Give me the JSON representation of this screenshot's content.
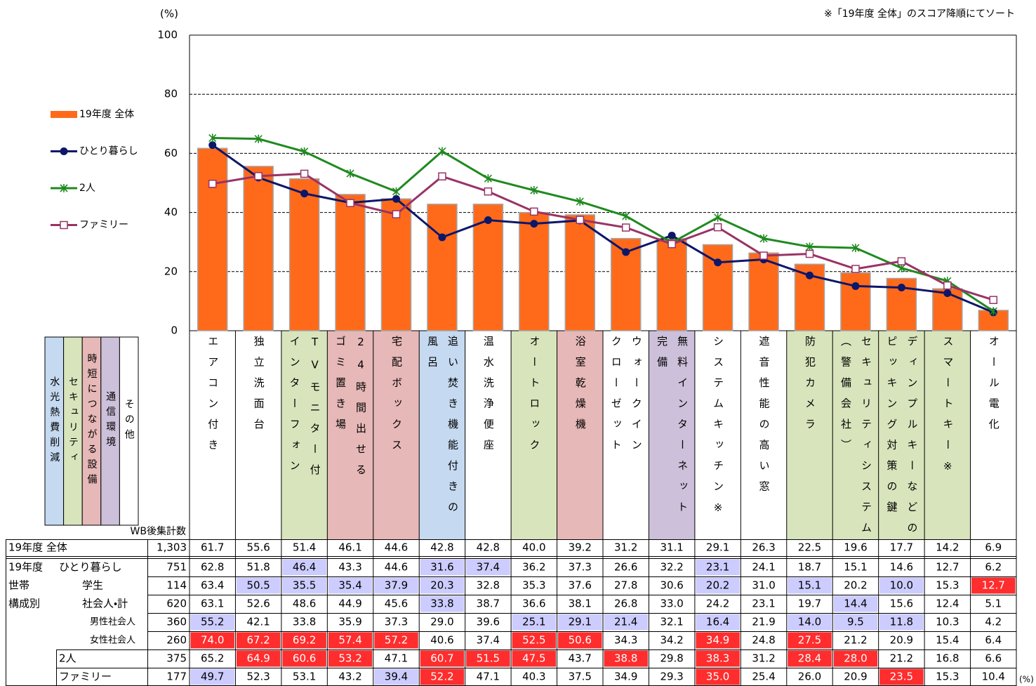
{
  "chart_data": {
    "type": "bar",
    "y_unit": "(%)",
    "note": "※「19年度 全体」のスコア降順にてソート",
    "categories": [
      "エアコン付き",
      "独立洗面台",
      "TVモニター付\nインターフォン",
      "24時間出せる\nゴミ置き場",
      "宅配ボックス",
      "追い焚き機能付きの\n風呂",
      "温水洗浄便座",
      "オートロック",
      "浴室乾燥機",
      "ウォークイン\nクローゼット",
      "無料インターネット\n完備",
      "システムキッチン※",
      "遮音性能の高い窓",
      "防犯カメラ",
      "セキュリティシステム\n（警備会社）",
      "ディンプルキーなどの\nピッキング対策の鍵",
      "スマートキー※",
      "オール電化"
    ],
    "category_colors": [
      "#ffffff",
      "#ffffff",
      "#d8e4bc",
      "#e6b8b7",
      "#e6b8b7",
      "#c5d9f1",
      "#ffffff",
      "#d8e4bc",
      "#e6b8b7",
      "#ffffff",
      "#ccc0da",
      "#ffffff",
      "#ffffff",
      "#d8e4bc",
      "#d8e4bc",
      "#d8e4bc",
      "#d8e4bc",
      "#ffffff"
    ],
    "category_groups": [
      {
        "name": "水光熱費削減",
        "color": "#c5d9f1"
      },
      {
        "name": "セキュリティ",
        "color": "#d8e4bc"
      },
      {
        "name": "時短につながる設備",
        "color": "#e6b8b7"
      },
      {
        "name": "通信環境",
        "color": "#ccc0da"
      },
      {
        "name": "その他",
        "color": "#ffffff"
      }
    ],
    "ylim": [
      0,
      100
    ],
    "yticks": [
      0,
      20,
      40,
      60,
      80,
      100
    ],
    "grid": true,
    "series": [
      {
        "name": "19年度 全体",
        "type": "bar",
        "color": "#ff6a1a",
        "n": {
          "value": 1303,
          "label": "1,303"
        },
        "values": [
          61.7,
          55.6,
          51.4,
          46.1,
          44.6,
          42.8,
          42.8,
          40.0,
          39.2,
          31.2,
          31.1,
          29.1,
          26.3,
          22.5,
          19.6,
          17.7,
          14.2,
          6.9
        ],
        "value_labels": [
          "61.7",
          "55.6",
          "51.4",
          "46.1",
          "44.6",
          "42.8",
          "42.8",
          "40.0",
          "39.2",
          "31.2",
          "31.1",
          "29.1",
          "26.3",
          "22.5",
          "19.6",
          "17.7",
          "14.2",
          "6.9"
        ]
      },
      {
        "name": "ひとり暮らし",
        "type": "line",
        "marker": "circle",
        "color": "#0d1769",
        "n": 751,
        "values": [
          62.8,
          51.8,
          46.4,
          43.3,
          44.6,
          31.6,
          37.4,
          36.2,
          37.3,
          26.6,
          32.2,
          23.1,
          24.1,
          18.7,
          15.1,
          14.6,
          12.7,
          6.2
        ],
        "value_labels": [
          "62.8",
          "51.8",
          "46.4",
          "43.3",
          "44.6",
          "31.6",
          "37.4",
          "36.2",
          "37.3",
          "26.6",
          "32.2",
          "23.1",
          "24.1",
          "18.7",
          "15.1",
          "14.6",
          "12.7",
          "6.2"
        ],
        "cell_colors": [
          null,
          null,
          "#ccccff",
          null,
          null,
          "#ccccff",
          "#ccccff",
          null,
          null,
          null,
          null,
          "#ccccff",
          null,
          null,
          null,
          null,
          null,
          null
        ]
      },
      {
        "name": "2人",
        "type": "line",
        "marker": "star",
        "color": "#1f8a1f",
        "n": 375,
        "values": [
          65.2,
          64.9,
          60.6,
          53.2,
          47.1,
          60.7,
          51.5,
          47.5,
          43.7,
          38.8,
          29.8,
          38.3,
          31.2,
          28.4,
          28.0,
          21.2,
          16.8,
          6.6
        ],
        "value_labels": [
          "65.2",
          "64.9",
          "60.6",
          "53.2",
          "47.1",
          "60.7",
          "51.5",
          "47.5",
          "43.7",
          "38.8",
          "29.8",
          "38.3",
          "31.2",
          "28.4",
          "28.0",
          "21.2",
          "16.8",
          "6.6"
        ],
        "cell_colors": [
          null,
          "#ff2d2d",
          "#ff2d2d",
          "#ff2d2d",
          null,
          "#ff2d2d",
          "#ff2d2d",
          "#ff2d2d",
          null,
          "#ff2d2d",
          null,
          "#ff2d2d",
          null,
          "#ff2d2d",
          "#ff2d2d",
          null,
          null,
          null
        ]
      },
      {
        "name": "ファミリー",
        "type": "line",
        "marker": "square",
        "color": "#993366",
        "n": 177,
        "values": [
          49.7,
          52.3,
          53.1,
          43.2,
          39.4,
          52.2,
          47.1,
          40.3,
          37.5,
          34.9,
          29.3,
          35.0,
          25.4,
          26.0,
          20.9,
          23.5,
          15.3,
          10.4
        ],
        "value_labels": [
          "49.7",
          "52.3",
          "53.1",
          "43.2",
          "39.4",
          "52.2",
          "47.1",
          "40.3",
          "37.5",
          "34.9",
          "29.3",
          "35.0",
          "25.4",
          "26.0",
          "20.9",
          "23.5",
          "15.3",
          "10.4"
        ],
        "cell_colors": [
          "#ccccff",
          null,
          null,
          null,
          "#ccccff",
          "#ff2d2d",
          null,
          null,
          null,
          null,
          null,
          "#ff2d2d",
          null,
          null,
          null,
          "#ff2d2d",
          null,
          null
        ]
      }
    ]
  },
  "table": {
    "count_header": "WB後集計数",
    "group_labels": [
      "19年度",
      "世帯",
      "構成別"
    ],
    "rows": [
      {
        "name": "学生",
        "n": 114,
        "values": [
          63.4,
          50.5,
          35.5,
          35.4,
          37.9,
          20.3,
          32.8,
          35.3,
          37.6,
          27.8,
          30.6,
          20.2,
          31.0,
          15.1,
          20.2,
          10.0,
          15.3,
          12.7
        ],
        "value_labels": [
          "63.4",
          "50.5",
          "35.5",
          "35.4",
          "37.9",
          "20.3",
          "32.8",
          "35.3",
          "37.6",
          "27.8",
          "30.6",
          "20.2",
          "31.0",
          "15.1",
          "20.2",
          "10.0",
          "15.3",
          "12.7"
        ],
        "cell_colors": [
          null,
          "#ccccff",
          "#ccccff",
          "#ccccff",
          "#ccccff",
          "#ccccff",
          null,
          null,
          null,
          null,
          null,
          "#ccccff",
          null,
          "#ccccff",
          null,
          "#ccccff",
          null,
          "#ff2d2d"
        ]
      },
      {
        "name": "社会人・計",
        "n": 620,
        "values": [
          63.1,
          52.6,
          48.6,
          44.9,
          45.6,
          33.8,
          38.7,
          36.6,
          38.1,
          26.8,
          33.0,
          24.2,
          23.1,
          19.7,
          14.4,
          15.6,
          12.4,
          5.1
        ],
        "value_labels": [
          "63.1",
          "52.6",
          "48.6",
          "44.9",
          "45.6",
          "33.8",
          "38.7",
          "36.6",
          "38.1",
          "26.8",
          "33.0",
          "24.2",
          "23.1",
          "19.7",
          "14.4",
          "15.6",
          "12.4",
          "5.1"
        ],
        "cell_colors": [
          null,
          null,
          null,
          null,
          null,
          "#ccccff",
          null,
          null,
          null,
          null,
          null,
          null,
          null,
          null,
          "#ccccff",
          null,
          null,
          null
        ]
      },
      {
        "name": "男性社会人",
        "n": 360,
        "values": [
          55.2,
          42.1,
          33.8,
          35.9,
          37.3,
          29.0,
          39.6,
          25.1,
          29.1,
          21.4,
          32.1,
          16.4,
          21.9,
          14.0,
          9.5,
          11.8,
          10.3,
          4.2
        ],
        "value_labels": [
          "55.2",
          "42.1",
          "33.8",
          "35.9",
          "37.3",
          "29.0",
          "39.6",
          "25.1",
          "29.1",
          "21.4",
          "32.1",
          "16.4",
          "21.9",
          "14.0",
          "9.5",
          "11.8",
          "10.3",
          "4.2"
        ],
        "cell_colors": [
          "#ccccff",
          null,
          null,
          null,
          null,
          null,
          null,
          "#ccccff",
          "#ccccff",
          "#ccccff",
          null,
          "#ccccff",
          null,
          "#ccccff",
          "#ccccff",
          "#ccccff",
          null,
          null
        ]
      },
      {
        "name": "女性社会人",
        "n": 260,
        "values": [
          74.0,
          67.2,
          69.2,
          57.4,
          57.2,
          40.6,
          37.4,
          52.5,
          50.6,
          34.3,
          34.2,
          34.9,
          24.8,
          27.5,
          21.2,
          20.9,
          15.4,
          6.4
        ],
        "value_labels": [
          "74.0",
          "67.2",
          "69.2",
          "57.4",
          "57.2",
          "40.6",
          "37.4",
          "52.5",
          "50.6",
          "34.3",
          "34.2",
          "34.9",
          "24.8",
          "27.5",
          "21.2",
          "20.9",
          "15.4",
          "6.4"
        ],
        "cell_colors": [
          "#ff2d2d",
          "#ff2d2d",
          "#ff2d2d",
          "#ff2d2d",
          "#ff2d2d",
          null,
          null,
          "#ff2d2d",
          "#ff2d2d",
          null,
          null,
          "#ff2d2d",
          null,
          "#ff2d2d",
          null,
          null,
          null,
          null
        ]
      }
    ]
  }
}
